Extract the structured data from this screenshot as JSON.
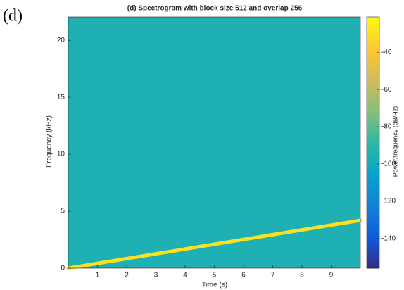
{
  "panel_label": "(d)",
  "chart_data": {
    "type": "spectrogram",
    "title": "(d) Spectrogram with block size 512 and overlap 256",
    "xlabel": "Time (s)",
    "ylabel": "Frequency (kHz)",
    "colorbar_label": "Power/frequency (dB/Hz)",
    "xlim": [
      0,
      10
    ],
    "xticks": [
      1,
      2,
      3,
      4,
      5,
      6,
      7,
      8,
      9
    ],
    "ylim": [
      0,
      22.05
    ],
    "yticks": [
      0,
      5,
      10,
      15,
      20
    ],
    "clim": [
      -156,
      -21
    ],
    "cticks": [
      -140,
      -120,
      -100,
      -80,
      -60,
      -40
    ],
    "colormap": [
      "#352a87",
      "#0f5cdd",
      "#1481d6",
      "#06a4ca",
      "#2eb7a4",
      "#87bf77",
      "#d1bb59",
      "#fec832",
      "#f9fb0e"
    ],
    "background_level": -95,
    "ridge": {
      "x": [
        0,
        10
      ],
      "y": [
        0,
        4.2
      ],
      "level": -30
    }
  }
}
